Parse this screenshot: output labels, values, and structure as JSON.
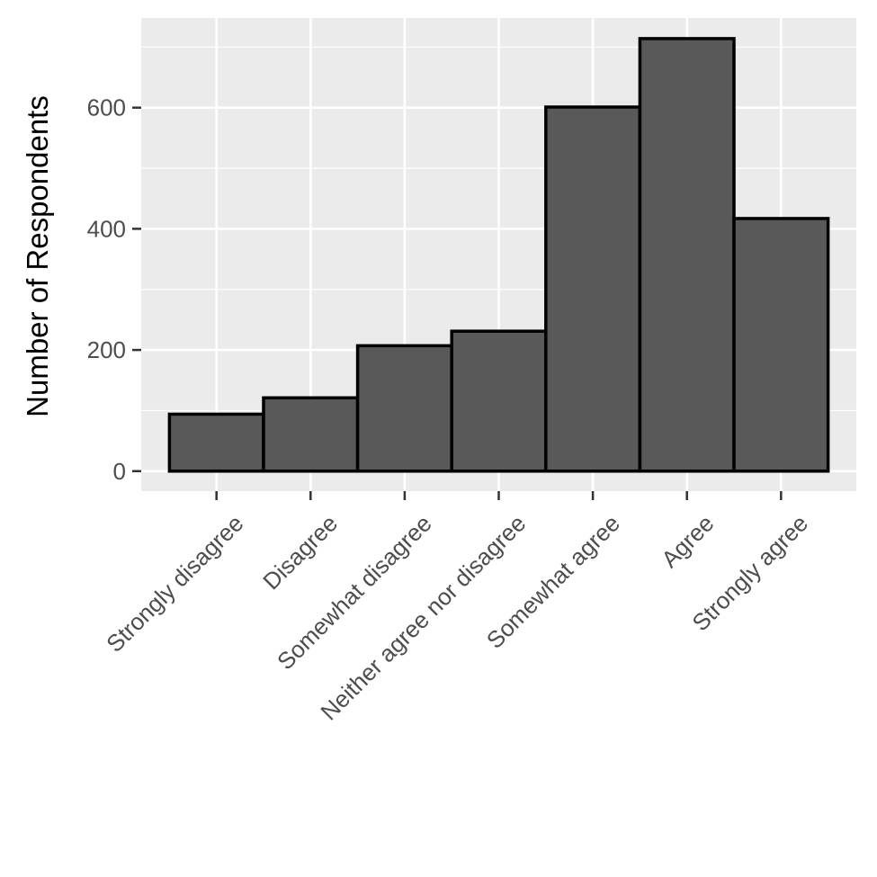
{
  "chart_data": {
    "type": "bar",
    "title": "",
    "xlabel": "",
    "ylabel": "Number of Respondents",
    "categories": [
      "Strongly disagree",
      "Disagree",
      "Somewhat disagree",
      "Neither agree nor disagree",
      "Somewhat agree",
      "Agree",
      "Strongly agree"
    ],
    "values": [
      94,
      121,
      207,
      231,
      601,
      714,
      417
    ],
    "ylim": [
      -33,
      748
    ],
    "yticks": [
      0,
      200,
      400,
      600
    ],
    "ytick_labels": [
      "0",
      "200",
      "400",
      "600"
    ],
    "grid": true,
    "legend": "none",
    "colors": {
      "bar_fill": "#595959",
      "bar_stroke": "#000000",
      "panel": "#ebebeb",
      "grid": "#ffffff"
    }
  }
}
